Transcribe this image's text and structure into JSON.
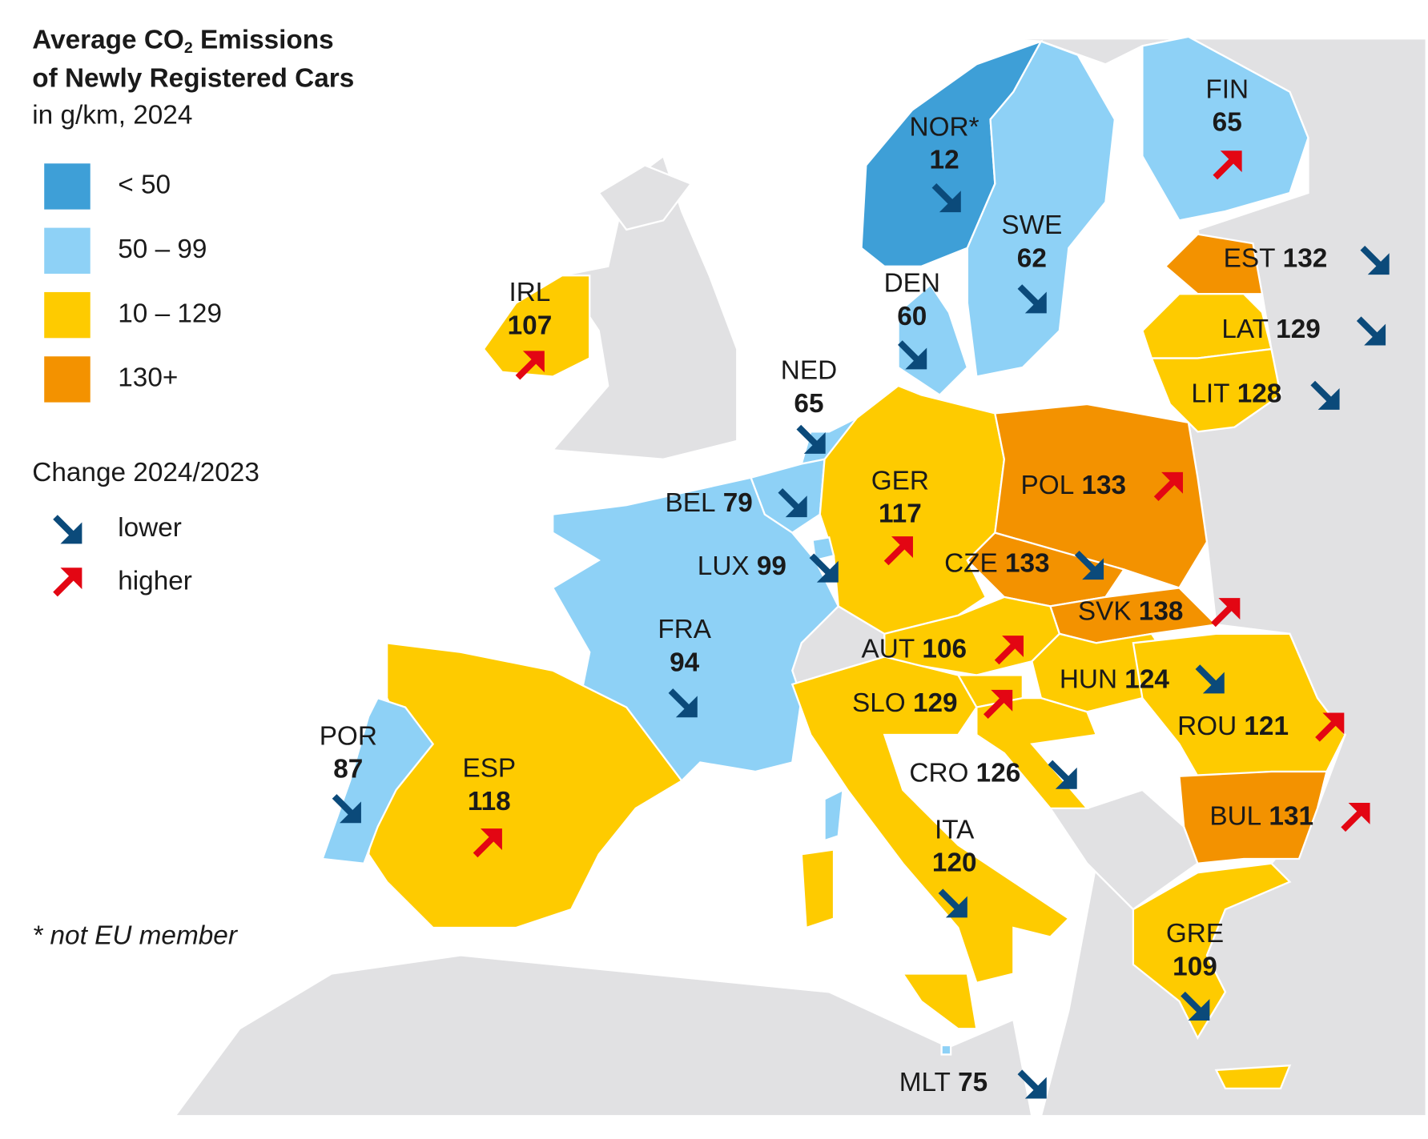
{
  "title": {
    "prefix": "Average CO",
    "subscript": "2",
    "suffix": "Emissions",
    "line2": "of Newly Registered Cars"
  },
  "subtitle": "in g/km, 2024",
  "legend": [
    {
      "label": "< 50",
      "color": "#3e9fd7"
    },
    {
      "label": "50 – 99",
      "color": "#8ed1f6"
    },
    {
      "label": "10 – 129",
      "color": "#fecb00"
    },
    {
      "label": "130+",
      "color": "#f39200"
    }
  ],
  "change": {
    "title": "Change 2024/2023",
    "items": [
      {
        "label": "lower",
        "direction": "down",
        "color": "#0b4a7a"
      },
      {
        "label": "higher",
        "direction": "up",
        "color": "#e30613"
      }
    ]
  },
  "footnote": "* not EU member",
  "countries": [
    {
      "code": "NOR*",
      "value": 12,
      "band": 0,
      "trend": 0
    },
    {
      "code": "FIN",
      "value": 65,
      "band": 1,
      "trend": 1
    },
    {
      "code": "SWE",
      "value": 62,
      "band": 1,
      "trend": 0
    },
    {
      "code": "EST",
      "value": 132,
      "band": 3,
      "trend": 0
    },
    {
      "code": "LAT",
      "value": 129,
      "band": 2,
      "trend": 0
    },
    {
      "code": "LIT",
      "value": 128,
      "band": 2,
      "trend": 0
    },
    {
      "code": "IRL",
      "value": 107,
      "band": 2,
      "trend": 1
    },
    {
      "code": "DEN",
      "value": 60,
      "band": 1,
      "trend": 0
    },
    {
      "code": "NED",
      "value": 65,
      "band": 1,
      "trend": 0
    },
    {
      "code": "BEL",
      "value": 79,
      "band": 1,
      "trend": 0
    },
    {
      "code": "GER",
      "value": 117,
      "band": 2,
      "trend": 1
    },
    {
      "code": "POL",
      "value": 133,
      "band": 3,
      "trend": 1
    },
    {
      "code": "CZE",
      "value": 133,
      "band": 3,
      "trend": 0
    },
    {
      "code": "LUX",
      "value": 99,
      "band": 1,
      "trend": 0
    },
    {
      "code": "SVK",
      "value": 138,
      "band": 3,
      "trend": 1
    },
    {
      "code": "FRA",
      "value": 94,
      "band": 1,
      "trend": 0
    },
    {
      "code": "AUT",
      "value": 106,
      "band": 2,
      "trend": 1
    },
    {
      "code": "HUN",
      "value": 124,
      "band": 2,
      "trend": 0
    },
    {
      "code": "SLO",
      "value": 129,
      "band": 2,
      "trend": 1
    },
    {
      "code": "ROU",
      "value": 121,
      "band": 2,
      "trend": 1
    },
    {
      "code": "POR",
      "value": 87,
      "band": 1,
      "trend": 0
    },
    {
      "code": "ESP",
      "value": 118,
      "band": 2,
      "trend": 1
    },
    {
      "code": "CRO",
      "value": 126,
      "band": 2,
      "trend": 0
    },
    {
      "code": "BUL",
      "value": 131,
      "band": 3,
      "trend": 1
    },
    {
      "code": "ITA",
      "value": 120,
      "band": 2,
      "trend": 0
    },
    {
      "code": "GRE",
      "value": 109,
      "band": 2,
      "trend": 0
    },
    {
      "code": "MLT",
      "value": 75,
      "band": 1,
      "trend": 0
    }
  ]
}
